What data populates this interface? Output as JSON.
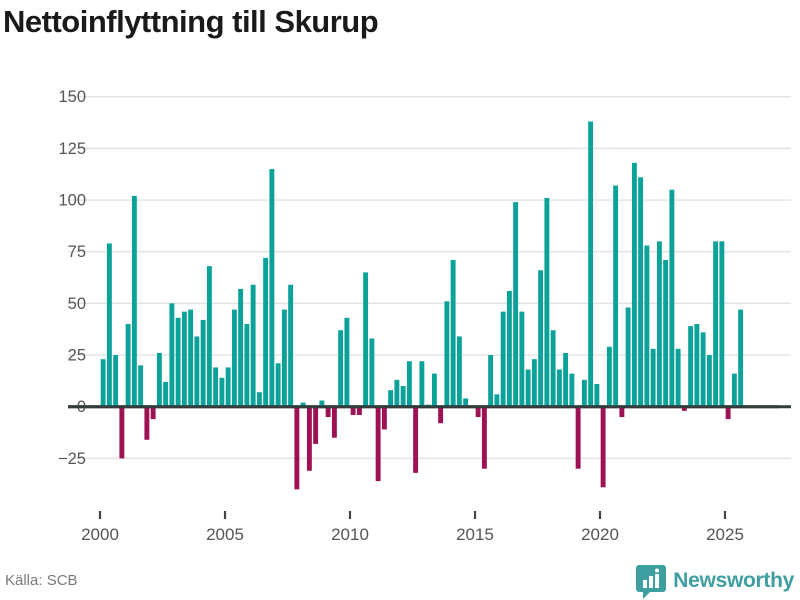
{
  "title": "Nettoinflyttning till Skurup",
  "footer": {
    "source": "Källa: SCB",
    "brand": "Newsworthy"
  },
  "colors": {
    "positive_bar": "#0ba29a",
    "negative_bar": "#9e1152",
    "gridline": "#e3e3e3",
    "zero_line": "#323c3d",
    "axis_text": "#555555",
    "tick_mark": "#444444",
    "title_text": "#1a1a1a",
    "source_text": "#7a7a7a",
    "brand_teal": "#3e9fa0"
  },
  "chart_data": {
    "type": "bar",
    "title": "Nettoinflyttning till Skurup",
    "xlabel": "",
    "ylabel": "",
    "grid": true,
    "legend": "none",
    "ylim": [
      -45,
      155
    ],
    "y_ticks": [
      150,
      125,
      100,
      75,
      50,
      25,
      0,
      -25
    ],
    "y_tick_labels": [
      "150",
      "125",
      "100",
      "75",
      "50",
      "25",
      "0",
      "−25"
    ],
    "x_tick_years": [
      2000,
      2005,
      2010,
      2015,
      2020,
      2025
    ],
    "x_tick_labels": [
      "2000",
      "2005",
      "2010",
      "2015",
      "2020",
      "2025"
    ],
    "categories": [
      "2000 Q1",
      "2000 Q2",
      "2000 Q3",
      "2000 Q4",
      "2001 Q1",
      "2001 Q2",
      "2001 Q3",
      "2001 Q4",
      "2002 Q1",
      "2002 Q2",
      "2002 Q3",
      "2002 Q4",
      "2003 Q1",
      "2003 Q2",
      "2003 Q3",
      "2003 Q4",
      "2004 Q1",
      "2004 Q2",
      "2004 Q3",
      "2004 Q4",
      "2005 Q1",
      "2005 Q2",
      "2005 Q3",
      "2005 Q4",
      "2006 Q1",
      "2006 Q2",
      "2006 Q3",
      "2006 Q4",
      "2007 Q1",
      "2007 Q2",
      "2007 Q3",
      "2007 Q4",
      "2008 Q1",
      "2008 Q2",
      "2008 Q3",
      "2008 Q4",
      "2009 Q1",
      "2009 Q2",
      "2009 Q3",
      "2009 Q4",
      "2010 Q1",
      "2010 Q2",
      "2010 Q3",
      "2010 Q4",
      "2011 Q1",
      "2011 Q2",
      "2011 Q3",
      "2011 Q4",
      "2012 Q1",
      "2012 Q2",
      "2012 Q3",
      "2012 Q4",
      "2013 Q1",
      "2013 Q2",
      "2013 Q3",
      "2013 Q4",
      "2014 Q1",
      "2014 Q2",
      "2014 Q3",
      "2014 Q4",
      "2015 Q1",
      "2015 Q2",
      "2015 Q3",
      "2015 Q4",
      "2016 Q1",
      "2016 Q2",
      "2016 Q3",
      "2016 Q4",
      "2017 Q1",
      "2017 Q2",
      "2017 Q3",
      "2017 Q4",
      "2018 Q1",
      "2018 Q2",
      "2018 Q3",
      "2018 Q4",
      "2019 Q1",
      "2019 Q2",
      "2019 Q3",
      "2019 Q4",
      "2020 Q1",
      "2020 Q2",
      "2020 Q3",
      "2020 Q4",
      "2021 Q1",
      "2021 Q2",
      "2021 Q3",
      "2021 Q4",
      "2022 Q1",
      "2022 Q2",
      "2022 Q3",
      "2022 Q4",
      "2023 Q1",
      "2023 Q2",
      "2023 Q3",
      "2023 Q4",
      "2024 Q1",
      "2024 Q2",
      "2024 Q3",
      "2024 Q4",
      "2025 Q1",
      "2025 Q2",
      "2025 Q3"
    ],
    "values": [
      23,
      79,
      25,
      -25,
      40,
      102,
      20,
      -16,
      -6,
      26,
      12,
      50,
      43,
      46,
      47,
      34,
      42,
      68,
      19,
      14,
      19,
      47,
      57,
      40,
      59,
      7,
      72,
      115,
      21,
      47,
      59,
      -40,
      2,
      -31,
      -18,
      3,
      -5,
      -15,
      37,
      43,
      -4,
      -4,
      65,
      33,
      -36,
      -11,
      8,
      13,
      10,
      22,
      -32,
      22,
      1,
      16,
      -8,
      51,
      71,
      34,
      4,
      0,
      -5,
      -30,
      25,
      6,
      46,
      56,
      99,
      46,
      18,
      23,
      66,
      101,
      37,
      18,
      26,
      16,
      -30,
      13,
      138,
      11,
      -39,
      29,
      107,
      -5,
      48,
      118,
      111,
      78,
      28,
      80,
      71,
      105,
      28,
      -2,
      39,
      40,
      36,
      25,
      80,
      80,
      -6,
      16,
      47
    ]
  }
}
